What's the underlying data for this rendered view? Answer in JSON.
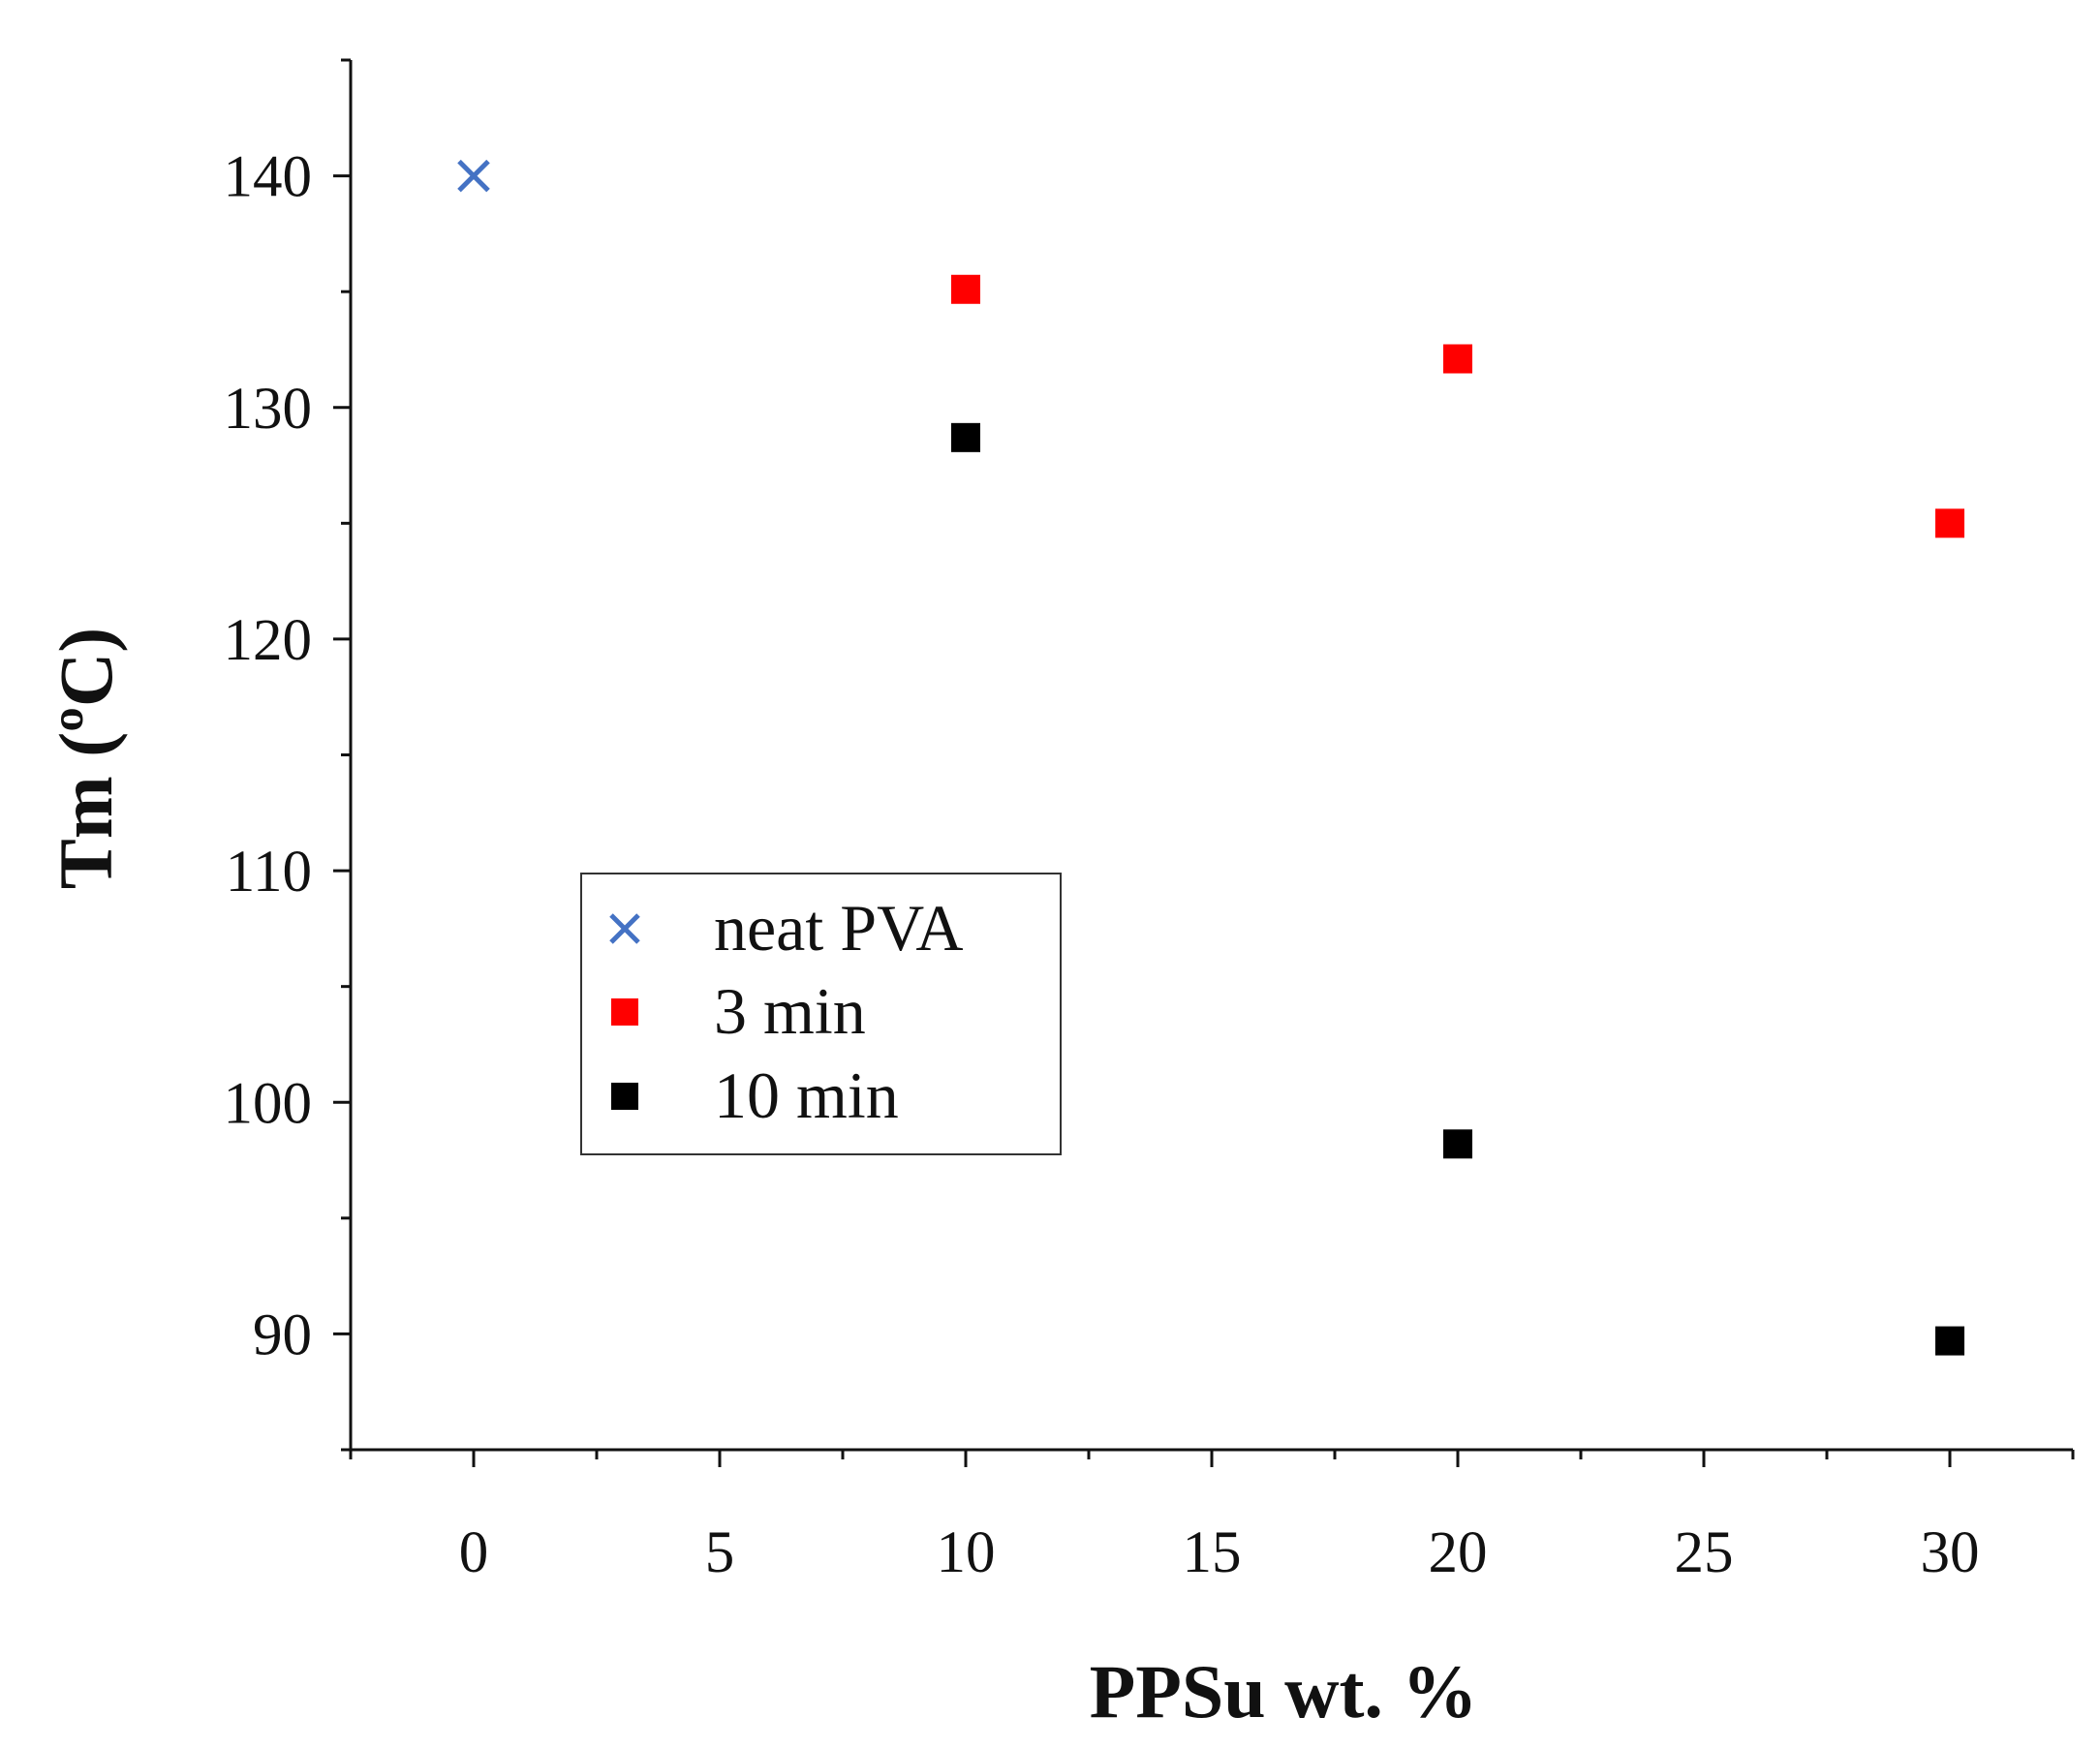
{
  "chart_data": {
    "type": "scatter",
    "xlabel": "PPSu wt. %",
    "ylabel": "Tm (ºC)",
    "xlim": [
      -2.5,
      32.5
    ],
    "ylim": [
      85,
      145
    ],
    "xticks": [
      0,
      5,
      10,
      15,
      20,
      25,
      30
    ],
    "yticks": [
      90,
      100,
      110,
      120,
      130,
      140
    ],
    "grid": false,
    "legend_position": "center-left",
    "series": [
      {
        "name": "neat PVA",
        "marker": "cross",
        "color": "#4472c4",
        "x": [
          0
        ],
        "y": [
          140
        ]
      },
      {
        "name": "3 min",
        "marker": "square",
        "color": "#ff0000",
        "x": [
          10,
          20,
          30
        ],
        "y": [
          135.1,
          132.1,
          125.0
        ]
      },
      {
        "name": "10 min",
        "marker": "square",
        "color": "#000000",
        "x": [
          10,
          20,
          30
        ],
        "y": [
          128.7,
          98.2,
          89.7
        ]
      }
    ]
  }
}
